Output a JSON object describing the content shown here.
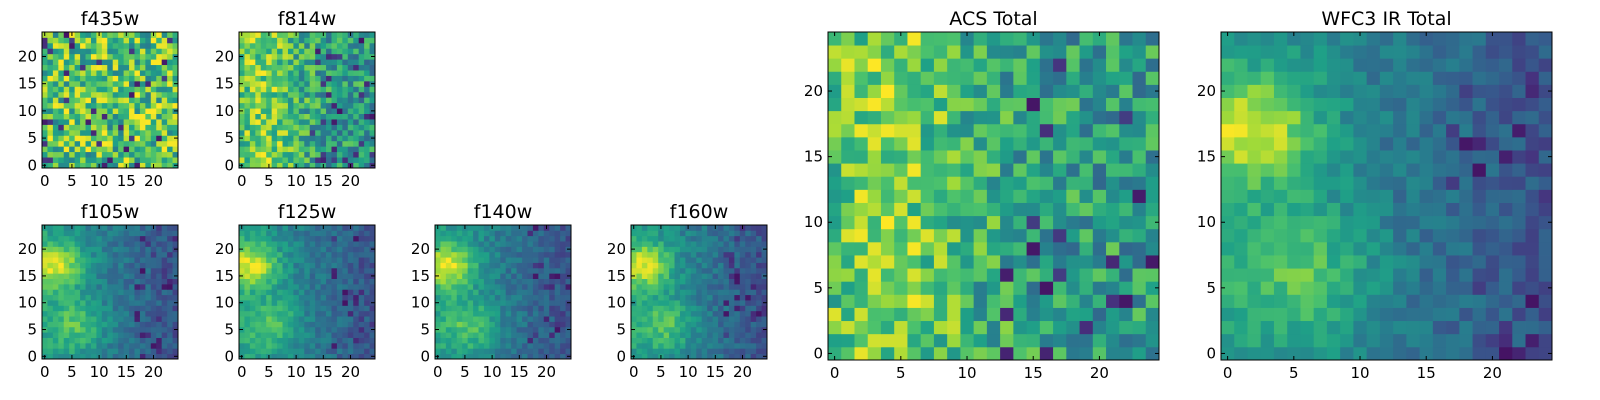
{
  "colormap": {
    "name": "viridis",
    "stops": [
      "#440154",
      "#46327e",
      "#365c8d",
      "#277f8e",
      "#1fa187",
      "#4ac16d",
      "#a0da39",
      "#fde725"
    ]
  },
  "chart_data": [
    {
      "id": "f435w",
      "type": "heatmap",
      "title": "f435w",
      "grid_size": 25,
      "xticks": [
        0,
        5,
        10,
        15,
        20
      ],
      "yticks": [
        0,
        5,
        10,
        15,
        20
      ],
      "xlim": [
        -0.5,
        24.5
      ],
      "ylim": [
        -0.5,
        24.5
      ],
      "grid": false,
      "pattern": "noise-uniform"
    },
    {
      "id": "f814w",
      "type": "heatmap",
      "title": "f814w",
      "grid_size": 25,
      "xticks": [
        0,
        5,
        10,
        15,
        20
      ],
      "yticks": [
        0,
        5,
        10,
        15,
        20
      ],
      "xlim": [
        -0.5,
        24.5
      ],
      "ylim": [
        -0.5,
        24.5
      ],
      "grid": false,
      "pattern": "noise-bright-left"
    },
    {
      "id": "f105w",
      "type": "heatmap",
      "title": "f105w",
      "grid_size": 25,
      "xticks": [
        0,
        5,
        10,
        15,
        20
      ],
      "yticks": [
        0,
        5,
        10,
        15,
        20
      ],
      "xlim": [
        -0.5,
        24.5
      ],
      "ylim": [
        -0.5,
        24.5
      ],
      "grid": false,
      "pattern": "blob-upper-left, faint-right"
    },
    {
      "id": "f125w",
      "type": "heatmap",
      "title": "f125w",
      "grid_size": 25,
      "xticks": [
        0,
        5,
        10,
        15,
        20
      ],
      "yticks": [
        0,
        5,
        10,
        15,
        20
      ],
      "xlim": [
        -0.5,
        24.5
      ],
      "ylim": [
        -0.5,
        24.5
      ],
      "grid": false,
      "pattern": "blob-upper-left, faint-right"
    },
    {
      "id": "f140w",
      "type": "heatmap",
      "title": "f140w",
      "grid_size": 25,
      "xticks": [
        0,
        5,
        10,
        15,
        20
      ],
      "yticks": [
        0,
        5,
        10,
        15,
        20
      ],
      "xlim": [
        -0.5,
        24.5
      ],
      "ylim": [
        -0.5,
        24.5
      ],
      "grid": false,
      "pattern": "blob-upper-left, faint-right"
    },
    {
      "id": "f160w",
      "type": "heatmap",
      "title": "f160w",
      "grid_size": 25,
      "xticks": [
        0,
        5,
        10,
        15,
        20
      ],
      "yticks": [
        0,
        5,
        10,
        15,
        20
      ],
      "xlim": [
        -0.5,
        24.5
      ],
      "ylim": [
        -0.5,
        24.5
      ],
      "grid": false,
      "pattern": "blob-upper-left, faint-right"
    },
    {
      "id": "acs",
      "type": "heatmap",
      "title": "ACS Total",
      "grid_size": 25,
      "xticks": [
        0,
        5,
        10,
        15,
        20
      ],
      "yticks": [
        0,
        5,
        10,
        15,
        20
      ],
      "xlim": [
        -0.5,
        24.5
      ],
      "ylim": [
        -0.5,
        24.5
      ],
      "grid": false,
      "pattern": "noise-bright-left"
    },
    {
      "id": "wfc3",
      "type": "heatmap",
      "title": "WFC3 IR Total",
      "grid_size": 25,
      "xticks": [
        0,
        5,
        10,
        15,
        20
      ],
      "yticks": [
        0,
        5,
        10,
        15,
        20
      ],
      "xlim": [
        -0.5,
        24.5
      ],
      "ylim": [
        -0.5,
        24.5
      ],
      "grid": false,
      "pattern": "blob-upper-left, faint-right"
    }
  ]
}
